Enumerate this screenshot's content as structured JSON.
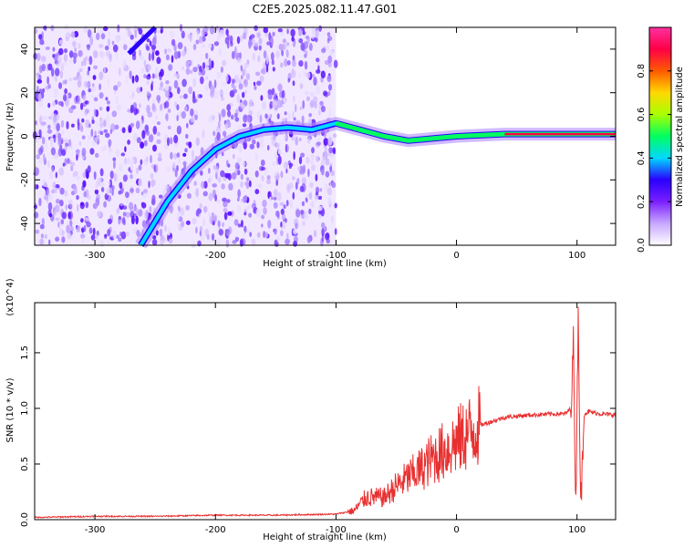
{
  "title": "C2E5.2025.082.11.47.G01",
  "chart_data": [
    {
      "type": "heatmap",
      "xlabel": "Height of straight line (km)",
      "ylabel": "Frequency (Hz)",
      "xlim": [
        -350,
        132
      ],
      "ylim": [
        -50,
        50
      ],
      "xticks": [
        -300,
        -200,
        -100,
        0,
        100
      ],
      "yticks": [
        -40,
        -20,
        0,
        20,
        40
      ],
      "colorbar": {
        "label": "Normalized spectral amplitude",
        "ticks": [
          "0.0",
          "0.2",
          "0.4",
          "0.6",
          "0.8"
        ],
        "range": [
          0,
          1
        ],
        "colors": [
          "#ffffff",
          "#c8a8ff",
          "#7b1fff",
          "#2a00ff",
          "#00d8ff",
          "#00ff60",
          "#a8ff00",
          "#ffd800",
          "#ff5a00",
          "#ff0046",
          "#ff30a0"
        ]
      },
      "noise_region_x": [
        -350,
        -100
      ],
      "trace": [
        {
          "x": -262,
          "y": -50
        },
        {
          "x": -240,
          "y": -30
        },
        {
          "x": -220,
          "y": -16
        },
        {
          "x": -200,
          "y": -6
        },
        {
          "x": -180,
          "y": 0
        },
        {
          "x": -160,
          "y": 3
        },
        {
          "x": -140,
          "y": 4
        },
        {
          "x": -120,
          "y": 3
        },
        {
          "x": -100,
          "y": 6
        },
        {
          "x": -80,
          "y": 3
        },
        {
          "x": -60,
          "y": 0
        },
        {
          "x": -40,
          "y": -2
        },
        {
          "x": 0,
          "y": 0
        },
        {
          "x": 40,
          "y": 1
        },
        {
          "x": 90,
          "y": 1
        },
        {
          "x": 132,
          "y": 1
        }
      ],
      "aliased_trace": [
        {
          "x": -272,
          "y": 38
        },
        {
          "x": -250,
          "y": 50
        }
      ]
    },
    {
      "type": "line",
      "xlabel": "Height of straight line (km)",
      "ylabel": "SNR (10 * v/v)",
      "y_multiplier": "(x10^4)",
      "xlim": [
        -350,
        132
      ],
      "ylim": [
        0,
        1.95
      ],
      "xticks": [
        -300,
        -200,
        -100,
        0,
        100
      ],
      "yticks": [
        "0.0",
        "0.5",
        "1.0",
        "1.5"
      ],
      "series": [
        {
          "color": "#e83030",
          "points": [
            {
              "x": -350,
              "y": 0.02
            },
            {
              "x": -300,
              "y": 0.03
            },
            {
              "x": -250,
              "y": 0.03
            },
            {
              "x": -200,
              "y": 0.04
            },
            {
              "x": -150,
              "y": 0.04
            },
            {
              "x": -100,
              "y": 0.05
            },
            {
              "x": -85,
              "y": 0.08
            },
            {
              "x": -75,
              "y": 0.2
            },
            {
              "x": -60,
              "y": 0.2
            },
            {
              "x": -50,
              "y": 0.3
            },
            {
              "x": -40,
              "y": 0.38
            },
            {
              "x": -30,
              "y": 0.45
            },
            {
              "x": -20,
              "y": 0.55
            },
            {
              "x": -10,
              "y": 0.62
            },
            {
              "x": 0,
              "y": 0.7
            },
            {
              "x": 10,
              "y": 0.78
            },
            {
              "x": 20,
              "y": 0.85
            },
            {
              "x": 40,
              "y": 0.92
            },
            {
              "x": 60,
              "y": 0.94
            },
            {
              "x": 80,
              "y": 0.95
            },
            {
              "x": 90,
              "y": 0.95
            },
            {
              "x": 95,
              "y": 1.0
            },
            {
              "x": 97,
              "y": 1.6
            },
            {
              "x": 99,
              "y": 0.1
            },
            {
              "x": 101,
              "y": 1.9
            },
            {
              "x": 103,
              "y": 0.1
            },
            {
              "x": 106,
              "y": 0.95
            },
            {
              "x": 110,
              "y": 0.97
            },
            {
              "x": 120,
              "y": 0.95
            },
            {
              "x": 132,
              "y": 0.94
            }
          ]
        }
      ]
    }
  ]
}
